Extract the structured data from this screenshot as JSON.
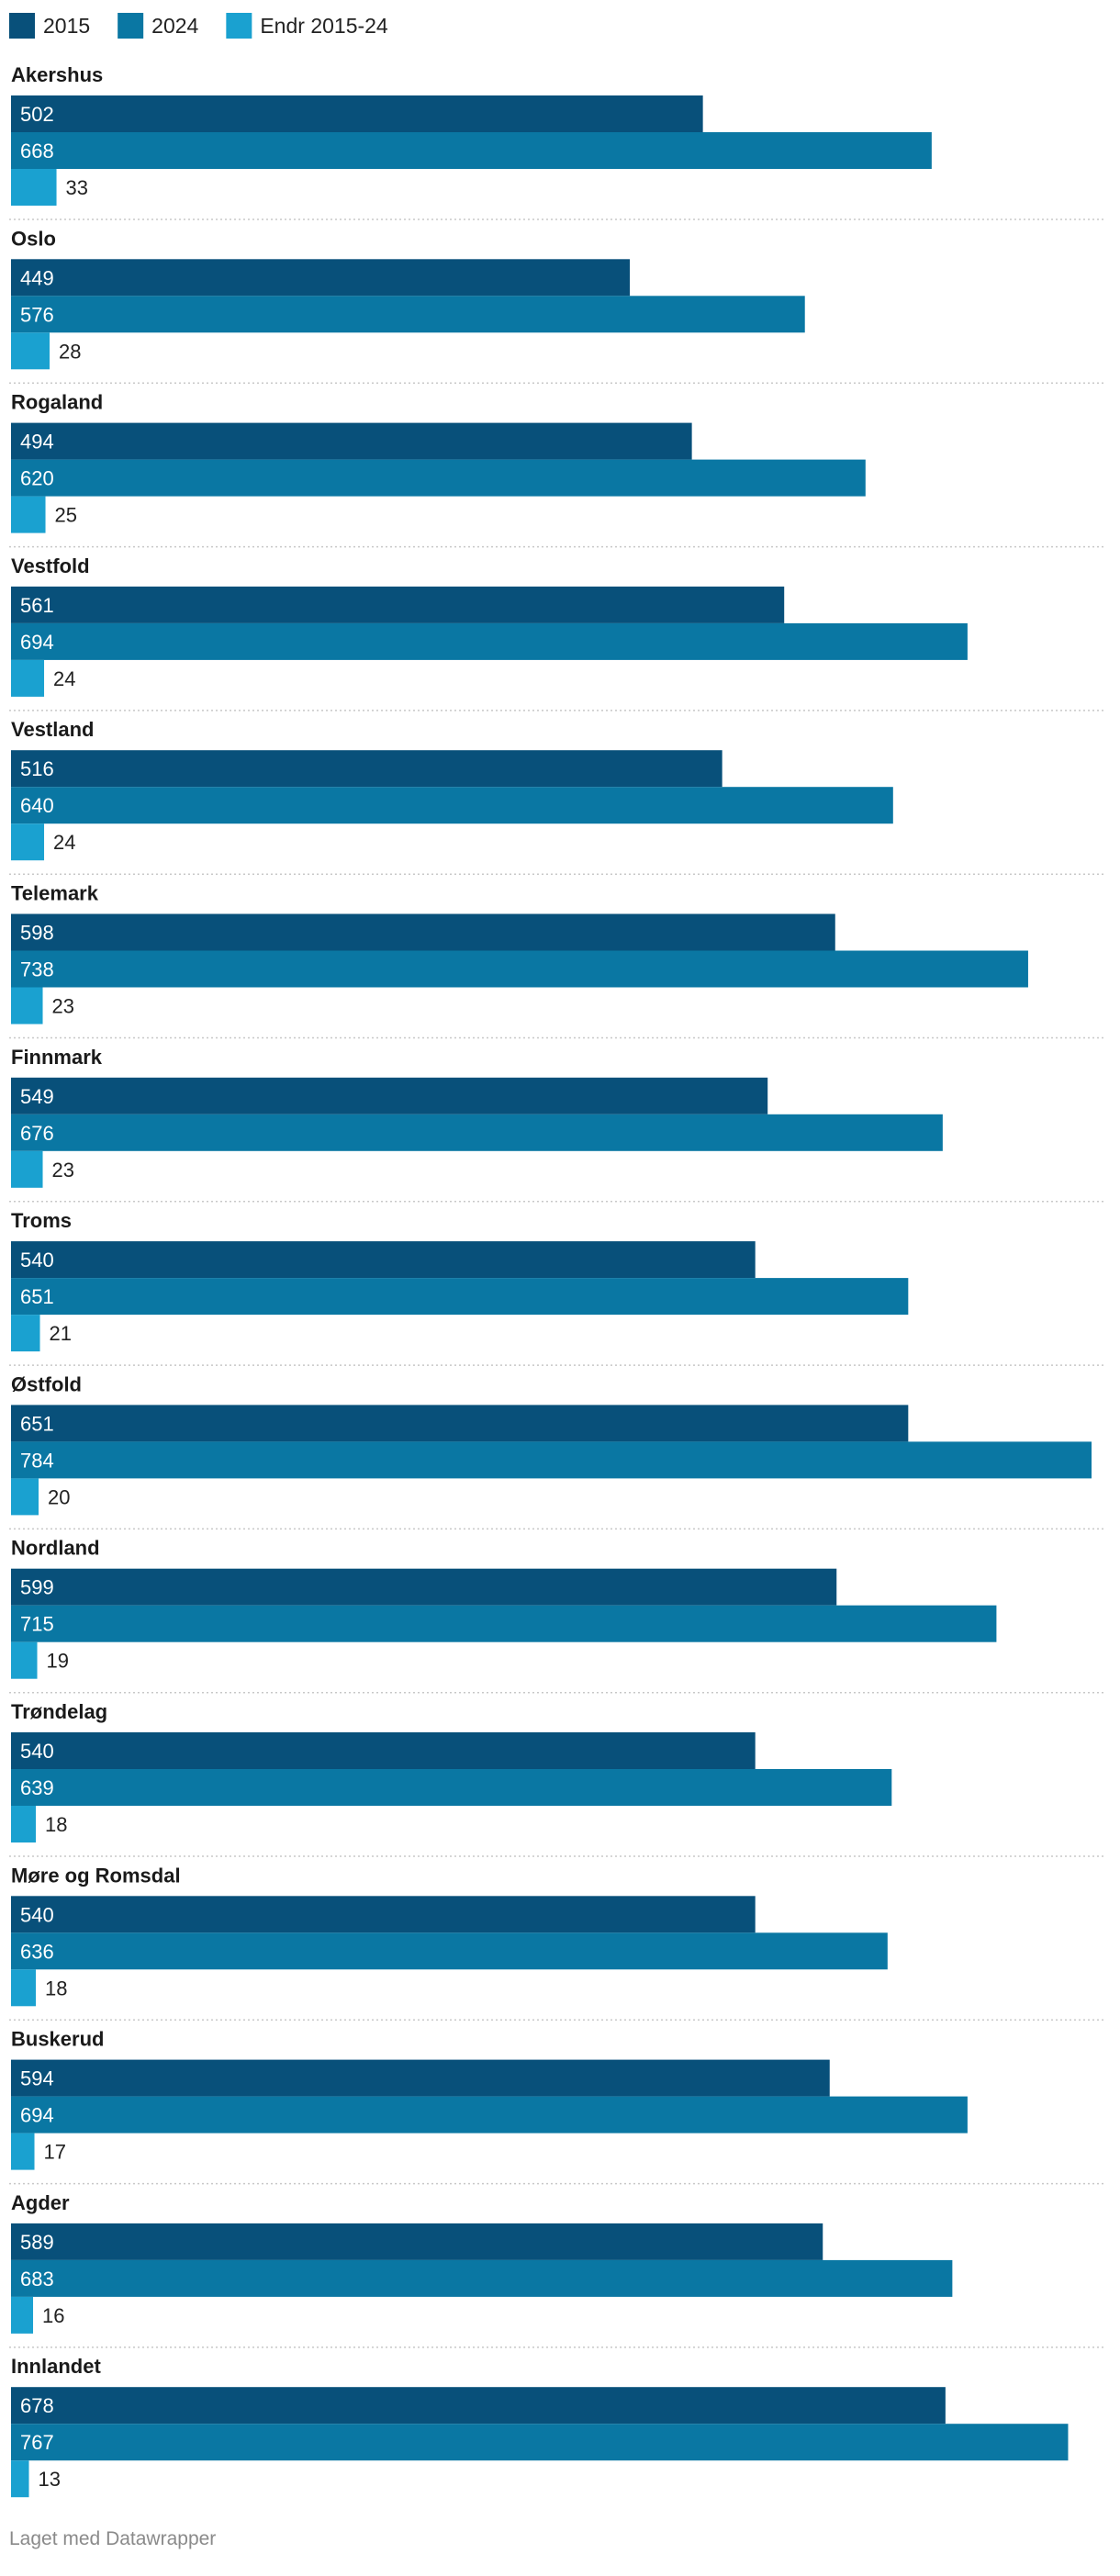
{
  "chart_data": {
    "type": "bar",
    "orientation": "horizontal-grouped",
    "categories": [
      "Akershus",
      "Oslo",
      "Rogaland",
      "Vestfold",
      "Vestland",
      "Telemark",
      "Finnmark",
      "Troms",
      "Østfold",
      "Nordland",
      "Trøndelag",
      "Møre og Romsdal",
      "Buskerud",
      "Agder",
      "Innlandet"
    ],
    "series": [
      {
        "name": "2015",
        "color": "#08507a",
        "values": [
          502,
          449,
          494,
          561,
          516,
          598,
          549,
          540,
          651,
          599,
          540,
          540,
          594,
          589,
          678
        ]
      },
      {
        "name": "2024",
        "color": "#0a77a3",
        "values": [
          668,
          576,
          620,
          694,
          640,
          738,
          676,
          651,
          784,
          715,
          639,
          636,
          694,
          683,
          767
        ]
      },
      {
        "name": "Endr 2015-24",
        "color": "#1aa1d0",
        "values": [
          33,
          28,
          25,
          24,
          24,
          23,
          23,
          21,
          20,
          19,
          18,
          18,
          17,
          16,
          13
        ]
      }
    ],
    "xlim": [
      0,
      784
    ],
    "grid": false,
    "legend_position": "top-left",
    "title": "",
    "xlabel": "",
    "ylabel": ""
  },
  "footer": "Laget med Datawrapper"
}
